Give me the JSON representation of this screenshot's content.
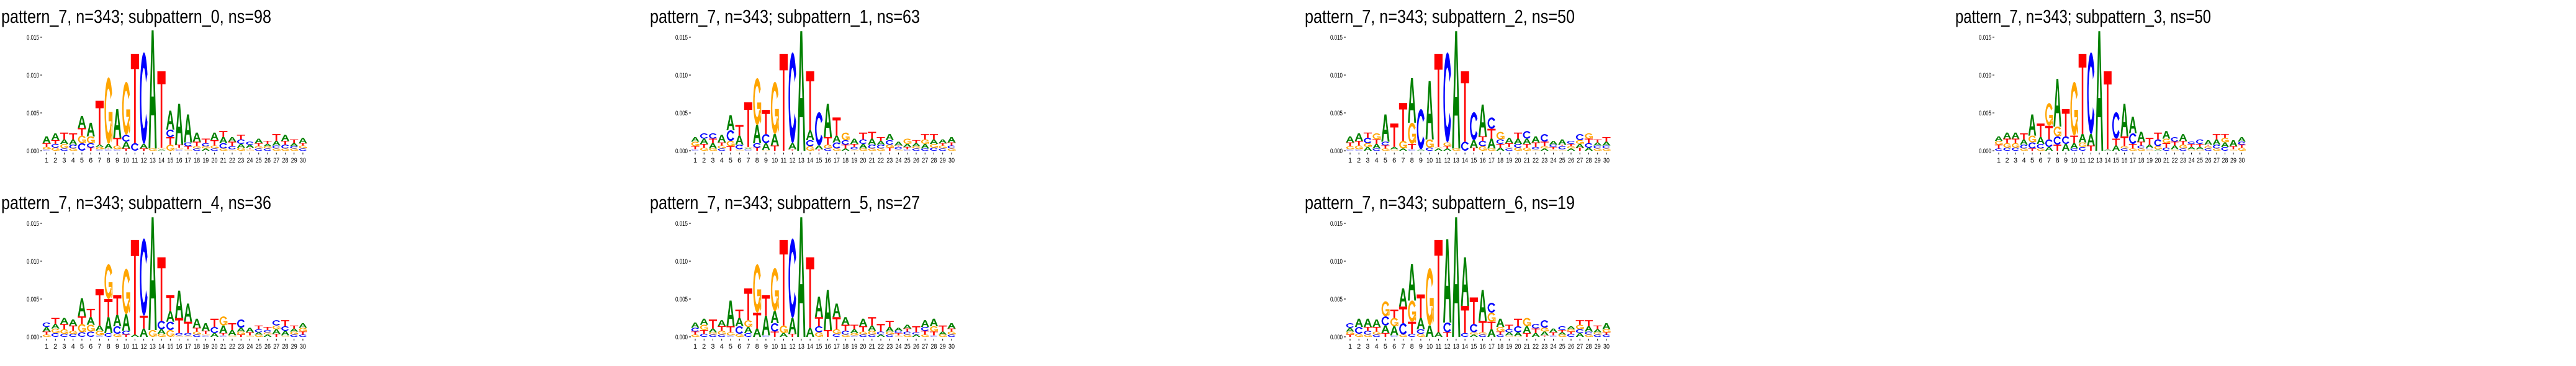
{
  "colors": {
    "A": "#008000",
    "C": "#0000ff",
    "G": "#ffa500",
    "T": "#ff0000"
  },
  "chart_data": {
    "type": "sequence-logo",
    "stack_value_unit": 0.001,
    "stack_format": "letters listed bottom-to-top, each followed by its height in units of 0.001",
    "ylim": [
      0,
      0.016
    ],
    "yticks": [
      "0.000",
      "0.005",
      "0.010",
      "0.015"
    ],
    "xticks": [
      "1",
      "2",
      "3",
      "4",
      "5",
      "6",
      "7",
      "8",
      "9",
      "10",
      "11",
      "12",
      "13",
      "14",
      "15",
      "16",
      "17",
      "18",
      "19",
      "20",
      "21",
      "22",
      "23",
      "24",
      "25",
      "26",
      "27",
      "28",
      "29",
      "30"
    ],
    "panels": [
      {
        "title": "pattern_7, n=343; subpattern_0, ns=98",
        "stacks": [
          "C0.2 G0.3 T0.5 A0.9",
          "G0.4 C0.5 T0.5 A0.9",
          "C0.3 G0.6 A0.6 T0.9",
          "G0.3 C0.5 A0.7 T0.8",
          "C1.0 G1.0 T1.0 A1.6",
          "T0.4 C0.6 G0.9 A1.8",
          "C0.2 G0.3 A0.3 T5.8",
          "C0.2 T0.1 A0.6 G8.8",
          "C0.2 G0.5 T1.0 A3.8",
          "T0.3 A0.9 C0.9 G7.0",
          "C1.0 T11.8",
          "T0.3 A0.6 C12.1",
          "G0.3 A15.6",
          "A0.2 G0.2 T10.1",
          "G0.8 T1.0 C1.0 A2.5",
          "C0.2 G0.2 T0.4 A5.4",
          "G0.2 T0.4 C0.5 A3.7",
          "C0.3 G0.3 T0.6 A1.2",
          "A0.3 G0.3 C0.4 T0.6",
          "C0.3 G0.4 T0.7 A1.0",
          "G0.3 C0.7 A0.8 T0.8",
          "G0.2 C0.4 T0.6 A0.6",
          "G0.4 A0.5 C0.6 T0.6",
          "G0.2 T0.2 A0.4 C0.4",
          "C0.3 G0.3 T0.4 A0.6",
          "C0.3 G0.3 A0.3 T0.4",
          "G0.3 C0.4 A0.6 T0.9",
          "G0.3 C0.5 T0.5 A0.8",
          "G0.3 C0.3 A0.4 T0.5",
          "C0.3 G0.4 T0.3 A0.7"
        ]
      },
      {
        "title": "pattern_7, n=343; subpattern_1, ns=63",
        "stacks": [
          "C0.2 T0.4 G0.6 A0.6",
          "G0.4 T0.5 A0.7 C0.7",
          "G0.3 A0.7 T0.6 C0.7",
          "C0.3 G0.4 T0.4 A1.0",
          "T0.6 G0.7 C1.4 A2.0",
          "G0.2 C0.6 A1.2 T1.4",
          "C0.2 A0.2 G0.1 T5.9",
          "T0.4 C0.6 A2.4 G6.2",
          "G0.1 A0.9 C1.2 T3.2",
          "T0.7 A1.5 G6.9",
          "T12.8",
          "T0.2 A0.8 C12.0",
          "A15.8",
          "G0.6 C0.8 A1.3 T7.8",
          "T0.2 A0.5 C4.4",
          "C0.3 G0.5 T1.0 A4.4",
          "G0.3 C0.8 A0.9 T2.4",
          "A0.3 T0.5 C0.6 G1.0",
          "G0.2 C0.3 T0.4 A0.7",
          "G0.3 A0.6 C0.6 T0.9",
          "G0.3 C0.5 A0.8 T0.9",
          "G0.3 C0.5 A0.5 T0.5",
          "T0.4 G0.4 C0.6 A0.8",
          "G0.2 C0.3 T0.2 A0.5",
          "C0.2 T0.3 A0.4 G0.7",
          "C0.3 G0.3 A0.4 T0.4",
          "C0.3 A0.6 G0.6 T0.7",
          "C0.4 G0.5 A0.6 T0.7",
          "C0.3 G0.4 T0.3 A0.5",
          "G0.3 C0.4 T0.4 A0.7"
        ]
      },
      {
        "title": "pattern_7, n=343; subpattern_2, ns=50",
        "stacks": [
          "C0.2 G0.4 T0.5 A0.8",
          "C0.2 G0.5 T0.6 A1.0",
          "A0.5 G0.5 C0.7 T0.7",
          "C0.3 A0.6 T0.6 G0.8",
          "G0.3 T0.4 C0.5 A3.6",
          "G0.2 A0.3 T3.1",
          "A0.3 G1.0 T5.0",
          "C0.2 T0.7 G2.8 A5.9",
          "A0.2 C5.3",
          "C0.4 G1.1 A7.7",
          "A0.3 G0.2 T12.3",
          "A0.3 T0.3 G0.5 C11.9",
          "G0.3 A15.5",
          "C1.2 T9.3",
          "T0.4 A1.0 C3.7",
          "G0.6 C0.7 T0.6 A4.2",
          "G0.3 A1.3 T1.3 C1.5",
          "A0.4 T0.5 C0.6 G1.0",
          "C0.3 G0.2 T0.5 A0.7",
          "G0.4 C0.5 A0.7 T0.8",
          "G0.4 T0.5 A0.7 C1.0",
          "G0.2 C0.3 T0.6 A0.8",
          "A0.3 G0.3 T0.6 C1.0",
          "G0.2 T0.3 C0.3 A0.5",
          "G0.2 C0.4 T0.2 A0.7",
          "A0.3 G0.3 T0.3 C0.4",
          "T0.4 A0.5 G0.5 C0.8",
          "A0.4 C0.6 T0.6 G0.7",
          "G0.3 C0.4 A0.4 T0.4",
          "G0.3 C0.4 A0.5 T0.6"
        ]
      },
      {
        "title": "pattern_7, n=343; subpattern_3, ns=50",
        "stacks": [
          "C0.3 T0.5 G0.5 A0.6",
          "C0.4 G0.6 T0.6 A0.8",
          "C0.4 G0.6 T0.6 A0.8",
          "G0.3 C0.5 A0.7 T0.8",
          "T0.3 C0.8 G0.9 A2.8",
          "G0.3 C0.6 A0.9 T1.8",
          "A0.5 C1.0 T1.8 G3.0",
          "T0.8 C1.1 G1.3 A6.3",
          "A0.9 C1.0 T3.6",
          "C0.3 A0.7 T1.0 G7.1",
          "C0.5 G0.6 A1.1 T10.6",
          "T0.7 A1.5 C10.8",
          "A15.8",
          "A0.2 T10.3",
          "A0.7 T0.9 C3.5",
          "C0.3 G0.3 T1.3 A4.3",
          "G0.3 T0.6 C1.4 A2.2",
          "G0.3 C0.4 T0.5 A1.3",
          "G0.2 C0.2 A0.4 T0.9",
          "A0.2 G0.4 C0.9 T0.9",
          "C0.4 T0.6 G0.6 A1.0",
          "G0.2 A0.5 T0.5 C0.6",
          "C0.3 G0.5 T0.5 A0.9",
          "G0.2 A0.3 T0.4 C0.3",
          "G0.2 A0.3 T0.4 C0.6",
          "C0.3 G0.3 T0.2 A0.6",
          "G0.3 C0.5 A0.7 T0.7",
          "C0.5 A0.6 G0.6 T0.5",
          "G0.2 T0.4 A0.8",
          "G0.4 T0.4 C0.4 A0.6"
        ]
      },
      {
        "title": "pattern_7, n=343; subpattern_4, ns=36",
        "stacks": [
          "G0.3 T0.4 A0.6 C0.6",
          "C0.5 G0.6 A0.6 T0.8",
          "C0.4 G0.6 T0.7 A0.8",
          "C0.4 G0.4 T0.7 A0.8",
          "C0.6 G1.1 T1.0 A2.4",
          "C0.7 G0.9 A1.0 T1.1",
          "C0.2 G0.6 A0.7 T4.8",
          "C0.5 A2.1 T2.4 G4.6",
          "G0.4 C1.0 A1.5 T2.6",
          "T0.3 C0.5 A2.2 G6.0",
          "A0.3 T12.5",
          "A1.1 T1.7 C10.2",
          "G0.9 A14.9",
          "G0.4 A0.6 C1.1 T8.4",
          "G0.9 C1.1 A1.4 T2.1",
          "G0.2 C0.3 T2.0 A3.6",
          "G0.2 C0.3 T1.5 A2.4",
          "C0.3 G0.4 T0.5 A1.2",
          "C0.2 G0.2 T0.4 A1.0",
          "A0.5 C0.8 T1.1",
          "C0.2 T0.3 A1.0 G1.2",
          "G0.2 A0.7 T0.9",
          "T0.3 G0.4 A0.5 C1.1",
          "G0.2 T0.4 A0.6",
          "G0.3 A0.3 C0.4 T0.5",
          "A0.3 G0.3 C0.3 T0.4",
          "T0.4 A0.6 G0.5 C0.7",
          "G0.2 A0.6 C0.6 T0.8",
          "C0.3 G0.4 A0.4 T0.4",
          "C0.3 T0.4 G0.5 A0.6"
        ]
      },
      {
        "title": "pattern_7, n=343; subpattern_5, ns=27",
        "stacks": [
          "G0.3 T0.4 C0.5 A0.7",
          "C0.4 T0.5 G0.7 A0.8",
          "C0.3 G0.3 A0.5 T1.2",
          "C0.3 G0.5 T0.6 A0.8",
          "C0.2 G0.4 T0.8 A3.4",
          "G0.4 C1.0 A1.1 T1.1",
          "C0.5 A0.8 G0.9 T4.2",
          "A1.1 T2.1 G6.4",
          "C0.2 A2.6 T2.7",
          "T0.7 C1.1 A1.6 G5.7",
          "A0.5 G1.0 T11.3",
          "T0.4 A2.1 C10.5",
          "A15.8",
          "A1.2 T9.3",
          "G0.6 C0.8 T1.2 A2.7",
          "T0.9 A5.3",
          "C0.4 G0.6 T1.6 A1.8",
          "G0.3 C0.5 T0.8 A1.0",
          "C0.2 G0.3 A0.5 T0.6",
          "C0.3 G0.4 T0.7 A1.0",
          "C0.3 G0.5 A0.7 T1.1",
          "A0.3 C0.4 T1.0",
          "C0.3 G0.4 A0.6 T0.8",
          "G0.2 T0.3 C0.3 A0.4",
          "G0.3 C0.4 T0.4 A0.5",
          "A0.3 C0.3 T0.8",
          "G0.3 T0.5 C0.5 A0.9",
          "C0.2 T0.5 G0.7 A1.0",
          "G0.3 A0.4 T0.8",
          "C0.3 G0.4 T0.4 A0.7"
        ]
      },
      {
        "title": "pattern_7, n=343; subpattern_6, ns=19",
        "stacks": [
          "T0.3 G0.4 A0.5 C0.6",
          "G0.4 C0.9 A1.1",
          "G0.3 C0.5 T0.5 A1.1",
          "C0.3 G0.4 T0.6 A1.0",
          "T0.5 A1.0 C1.2 G2.0",
          "C0.2 A1.2 G1.1 T1.1",
          "G0.3 C1.5 T2.2 A2.4",
          "C0.4 T1.6 G2.8 A4.8",
          "G0.4 C0.6 A1.5 T3.1",
          "A1.5 G7.6",
          "A0.6 T12.2",
          "T0.6 C1.3 A11.0",
          "A15.8",
          "C0.5 T3.6 A6.4",
          "A0.3 G0.3 C1.1 T3.5",
          "C0.3 G0.3 T1.5 A4.1",
          "A1.0 T1.0 G1.2 C1.3",
          "C0.3 T0.4 G0.6 A1.1",
          "G0.2 A0.4 C0.4 T0.6",
          "G0.1 A0.5 C0.8 T1.0",
          "T0.5 A0.9 G1.1",
          "A0.5 T0.6 C0.6",
          "T0.2 A0.5 G0.5 C1.0",
          "C0.2 T0.4 A0.5",
          "G0.3 A0.3 T0.3 C0.5",
          "C0.4 T0.3 G0.3 A0.4",
          "A0.5 C0.5 G0.6 T0.6",
          "G0.3 C0.4 A0.7 T0.8",
          "C0.3 G0.3 A0.4 T0.5",
          "C0.3 T0.3 G0.4 A0.8"
        ]
      }
    ]
  }
}
